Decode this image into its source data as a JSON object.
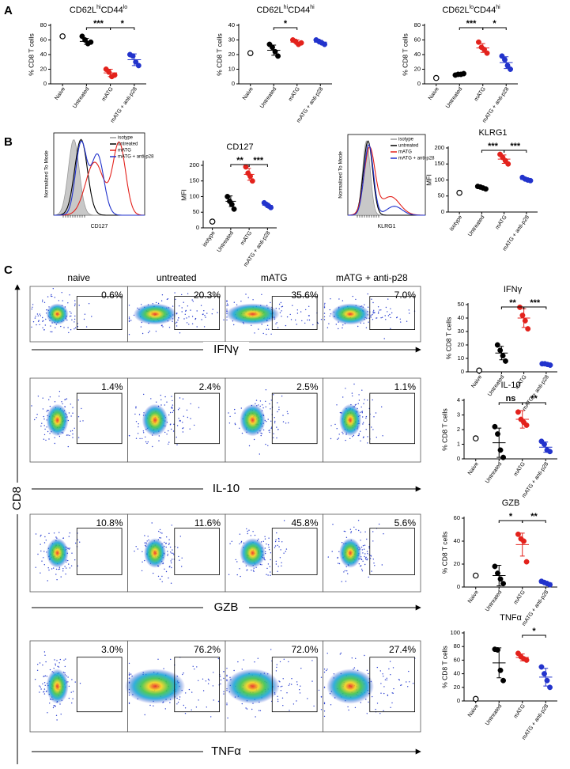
{
  "figure": {
    "panel_labels": [
      "A",
      "B",
      "C"
    ],
    "histograms": [
      {
        "xlabel": "CD127",
        "ylabel": "Normalized To Mode",
        "legend": [
          {
            "name": "isotype",
            "color": "#9a9a9a"
          },
          {
            "name": "untreated",
            "color": "#000000"
          },
          {
            "name": "mATG",
            "color": "#e3221c"
          },
          {
            "name": "mATG + anti-p28",
            "color": "#2233cc"
          }
        ]
      },
      {
        "xlabel": "KLRG1",
        "ylabel": "Normalized To Mode",
        "legend": [
          {
            "name": "isotype",
            "color": "#9a9a9a"
          },
          {
            "name": "untreated",
            "color": "#000000"
          },
          {
            "name": "mATG",
            "color": "#e3221c"
          },
          {
            "name": "mATG + anti-p28",
            "color": "#2233cc"
          }
        ]
      }
    ],
    "flow": {
      "ylabel": "CD8",
      "columns": [
        "naive",
        "untreated",
        "mATG",
        "mATG + anti-p28"
      ],
      "rows": [
        {
          "marker": "IFNγ",
          "percents": [
            "0.6%",
            "20.3%",
            "35.6%",
            "7.0%"
          ]
        },
        {
          "marker": "IL-10",
          "percents": [
            "1.4%",
            "2.4%",
            "2.5%",
            "1.1%"
          ]
        },
        {
          "marker": "GZB",
          "percents": [
            "10.8%",
            "11.6%",
            "45.8%",
            "5.6%"
          ]
        },
        {
          "marker": "TNFα",
          "percents": [
            "3.0%",
            "76.2%",
            "72.0%",
            "27.4%"
          ]
        }
      ]
    }
  },
  "chart_data": [
    {
      "type": "dot",
      "title": [
        {
          "text": "CD62L"
        },
        {
          "text": "hi",
          "sup": true
        },
        {
          "text": "CD44"
        },
        {
          "text": "lo",
          "sup": true
        }
      ],
      "ylabel": "% CD8 T cells",
      "categories": [
        "Naive",
        "Untreated",
        "mATG",
        "mATG + anti-p28"
      ],
      "groups": [
        {
          "color": "#000000",
          "open": true,
          "values": [
            65
          ]
        },
        {
          "color": "#000000",
          "values": [
            65,
            60,
            55,
            57
          ],
          "mean": 58,
          "sd": 4
        },
        {
          "color": "#e3221c",
          "values": [
            20,
            16,
            10,
            12
          ],
          "mean": 15,
          "sd": 5
        },
        {
          "color": "#2233cc",
          "values": [
            40,
            38,
            30,
            25
          ],
          "mean": 33,
          "sd": 8
        }
      ],
      "ylim": [
        0,
        80
      ],
      "yticks": [
        0,
        20,
        40,
        60,
        80
      ],
      "significance": [
        {
          "between": [
            1,
            2
          ],
          "label": "***"
        },
        {
          "between": [
            2,
            3
          ],
          "label": "*"
        }
      ]
    },
    {
      "type": "dot",
      "title": [
        {
          "text": "CD62L"
        },
        {
          "text": "hi",
          "sup": true
        },
        {
          "text": "CD44"
        },
        {
          "text": "hi",
          "sup": true
        }
      ],
      "ylabel": "% CD8 T cells",
      "categories": [
        "Naive",
        "Untreated",
        "mATG",
        "mATG + anti-p28"
      ],
      "groups": [
        {
          "color": "#000000",
          "open": true,
          "values": [
            21
          ]
        },
        {
          "color": "#000000",
          "values": [
            27,
            25,
            22,
            19
          ],
          "mean": 23,
          "sd": 3.5
        },
        {
          "color": "#e3221c",
          "values": [
            30,
            29,
            27,
            28
          ],
          "mean": 28.5,
          "sd": 1.5
        },
        {
          "color": "#2233cc",
          "values": [
            30,
            29,
            28,
            27
          ],
          "mean": 28.5,
          "sd": 1.3
        }
      ],
      "ylim": [
        0,
        40
      ],
      "yticks": [
        0,
        10,
        20,
        30,
        40
      ],
      "significance": [
        {
          "between": [
            1,
            2
          ],
          "label": "*"
        }
      ]
    },
    {
      "type": "dot",
      "title": [
        {
          "text": "CD62L"
        },
        {
          "text": "lo",
          "sup": true
        },
        {
          "text": "CD44"
        },
        {
          "text": "hi",
          "sup": true
        }
      ],
      "ylabel": "% CD8 T cells",
      "categories": [
        "Naive",
        "Untreated",
        "mATG",
        "mATG + anti-p28"
      ],
      "groups": [
        {
          "color": "#000000",
          "open": true,
          "values": [
            8
          ]
        },
        {
          "color": "#000000",
          "values": [
            12,
            13,
            13,
            14
          ],
          "mean": 13,
          "sd": 1
        },
        {
          "color": "#e3221c",
          "values": [
            57,
            50,
            47,
            42
          ],
          "mean": 49,
          "sd": 6
        },
        {
          "color": "#2233cc",
          "values": [
            38,
            33,
            25,
            20
          ],
          "mean": 29,
          "sd": 8
        }
      ],
      "ylim": [
        0,
        80
      ],
      "yticks": [
        0,
        20,
        40,
        60,
        80
      ],
      "significance": [
        {
          "between": [
            1,
            2
          ],
          "label": "***"
        },
        {
          "between": [
            2,
            3
          ],
          "label": "*"
        }
      ]
    },
    {
      "type": "dot",
      "title": "CD127",
      "ylabel": "MFI",
      "categories": [
        "isotype",
        "Untreated",
        "mATG",
        "mATG + anti-p28"
      ],
      "groups": [
        {
          "color": "#000000",
          "open": true,
          "values": [
            20
          ]
        },
        {
          "color": "#000000",
          "values": [
            100,
            85,
            75,
            60
          ],
          "mean": 85,
          "sd": 17
        },
        {
          "color": "#e3221c",
          "values": [
            195,
            175,
            165,
            150
          ],
          "mean": 171,
          "sd": 19
        },
        {
          "color": "#2233cc",
          "values": [
            80,
            75,
            70,
            65
          ],
          "mean": 72,
          "sd": 7
        }
      ],
      "ylim": [
        0,
        210
      ],
      "yticks": [
        0,
        50,
        100,
        150,
        200
      ],
      "significance": [
        {
          "between": [
            1,
            2
          ],
          "label": "**"
        },
        {
          "between": [
            2,
            3
          ],
          "label": "***"
        }
      ]
    },
    {
      "type": "dot",
      "title": "KLRG1",
      "ylabel": "MFI",
      "categories": [
        "isotype",
        "Untreated",
        "mATG",
        "mATG + anti-p28"
      ],
      "groups": [
        {
          "color": "#000000",
          "open": true,
          "values": [
            60
          ]
        },
        {
          "color": "#000000",
          "values": [
            80,
            78,
            75,
            72
          ],
          "mean": 76,
          "sd": 4
        },
        {
          "color": "#e3221c",
          "values": [
            180,
            170,
            160,
            150
          ],
          "mean": 165,
          "sd": 13
        },
        {
          "color": "#2233cc",
          "values": [
            108,
            103,
            100,
            98
          ],
          "mean": 102,
          "sd": 4
        }
      ],
      "ylim": [
        0,
        200
      ],
      "yticks": [
        0,
        50,
        100,
        150,
        200
      ],
      "significance": [
        {
          "between": [
            1,
            2
          ],
          "label": "***"
        },
        {
          "between": [
            2,
            3
          ],
          "label": "***"
        }
      ]
    },
    {
      "type": "dot",
      "title": "IFNγ",
      "ylabel": "% CD8 T cells",
      "categories": [
        "Naive",
        "Untreated",
        "mATG",
        "mATG + anti-p28"
      ],
      "groups": [
        {
          "color": "#000000",
          "open": true,
          "values": [
            1
          ]
        },
        {
          "color": "#000000",
          "values": [
            20,
            16,
            12,
            8
          ],
          "mean": 14,
          "sd": 5
        },
        {
          "color": "#e3221c",
          "values": [
            48,
            42,
            38,
            32
          ],
          "mean": 40,
          "sd": 7
        },
        {
          "color": "#2233cc",
          "values": [
            6,
            6,
            5.5,
            5
          ],
          "mean": 5.6,
          "sd": 0.5
        }
      ],
      "ylim": [
        0,
        50
      ],
      "yticks": [
        0,
        10,
        20,
        30,
        40,
        50
      ],
      "significance": [
        {
          "between": [
            1,
            2
          ],
          "label": "**"
        },
        {
          "between": [
            2,
            3
          ],
          "label": "***"
        }
      ]
    },
    {
      "type": "dot",
      "title": "IL-10",
      "ylabel": "% CD8 T cells",
      "categories": [
        "Naive",
        "Untreated",
        "mATG",
        "mATG + anti-p28"
      ],
      "groups": [
        {
          "color": "#000000",
          "open": true,
          "values": [
            1.4
          ]
        },
        {
          "color": "#000000",
          "values": [
            2.2,
            1.7,
            0.6,
            0.1
          ],
          "mean": 1.1,
          "sd": 1
        },
        {
          "color": "#e3221c",
          "values": [
            3.2,
            2.7,
            2.5,
            2.3
          ],
          "mean": 2.7,
          "sd": 0.6
        },
        {
          "color": "#2233cc",
          "values": [
            1.2,
            1,
            0.6,
            0.5
          ],
          "mean": 0.8,
          "sd": 0.35
        }
      ],
      "ylim": [
        0,
        4
      ],
      "yticks": [
        0,
        1,
        2,
        3,
        4
      ],
      "significance": [
        {
          "between": [
            1,
            2
          ],
          "label": "ns"
        },
        {
          "between": [
            2,
            3
          ],
          "label": "**"
        }
      ]
    },
    {
      "type": "dot",
      "title": "GZB",
      "ylabel": "% CD8 T cells",
      "categories": [
        "Naive",
        "Untreated",
        "mATG",
        "mATG + anti-p28"
      ],
      "groups": [
        {
          "color": "#000000",
          "open": true,
          "values": [
            10
          ]
        },
        {
          "color": "#000000",
          "values": [
            18,
            12,
            7,
            3
          ],
          "mean": 10,
          "sd": 9
        },
        {
          "color": "#e3221c",
          "values": [
            46,
            42,
            40,
            22
          ],
          "mean": 37,
          "sd": 10
        },
        {
          "color": "#2233cc",
          "values": [
            5,
            4,
            3,
            2
          ],
          "mean": 3.5,
          "sd": 1.5
        }
      ],
      "ylim": [
        0,
        60
      ],
      "yticks": [
        0,
        20,
        40,
        60
      ],
      "significance": [
        {
          "between": [
            1,
            2
          ],
          "label": "*"
        },
        {
          "between": [
            2,
            3
          ],
          "label": "**"
        }
      ]
    },
    {
      "type": "dot",
      "title": "TNFα",
      "ylabel": "% CD8 T cells",
      "categories": [
        "Naive",
        "Untreated",
        "mATG",
        "mATG + anti-p28"
      ],
      "groups": [
        {
          "color": "#000000",
          "open": true,
          "values": [
            3
          ]
        },
        {
          "color": "#000000",
          "values": [
            76,
            75,
            45,
            30
          ],
          "mean": 56,
          "sd": 22
        },
        {
          "color": "#e3221c",
          "values": [
            70,
            65,
            62,
            60
          ],
          "mean": 64,
          "sd": 5
        },
        {
          "color": "#2233cc",
          "values": [
            50,
            40,
            30,
            20
          ],
          "mean": 35,
          "sd": 13
        }
      ],
      "ylim": [
        0,
        100
      ],
      "yticks": [
        0,
        20,
        40,
        60,
        80,
        100
      ],
      "significance": [
        {
          "between": [
            2,
            3
          ],
          "label": "*"
        }
      ]
    }
  ]
}
